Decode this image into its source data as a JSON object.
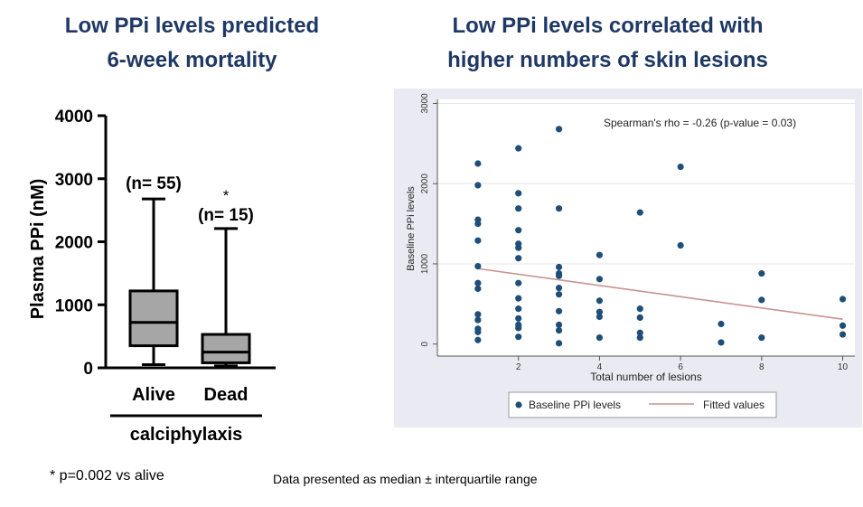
{
  "colors": {
    "title": "#1f3864",
    "box_fill": "#a6a6a6",
    "dot": "#1f4e79",
    "fit_line": "#c9928f",
    "panel_bg": "#eaeaf2"
  },
  "chart_data": [
    {
      "type": "box",
      "title": [
        "Low PPi levels predicted",
        "6-week mortality"
      ],
      "ylabel": "Plasma PPi (nM)",
      "ylim": [
        0,
        4000
      ],
      "yticks": [
        "0",
        "1000",
        "2000",
        "3000",
        "4000"
      ],
      "ytick_values": [
        0,
        1000,
        2000,
        3000,
        4000
      ],
      "categories": [
        "Alive",
        "Dead"
      ],
      "group_label": "calciphylaxis",
      "boxes": [
        {
          "name": "Alive",
          "min": 50,
          "q1": 350,
          "median": 720,
          "q3": 1220,
          "max": 2680,
          "n_label": "(n= 55)"
        },
        {
          "name": "Dead",
          "min": 30,
          "q1": 80,
          "median": 250,
          "q3": 530,
          "max": 2210,
          "n_label": "(n= 15)",
          "marker": "*"
        }
      ]
    },
    {
      "type": "scatter",
      "title": [
        "Low PPi levels correlated with",
        "higher numbers of skin lesions"
      ],
      "xlabel": "Total number of lesions",
      "ylabel": "Baseline PPi levels",
      "xlim": [
        0,
        10.3
      ],
      "ylim": [
        -150,
        3050
      ],
      "xticks": [
        "2",
        "4",
        "6",
        "8",
        "10"
      ],
      "xtick_values": [
        2,
        4,
        6,
        8,
        10
      ],
      "yticks": [
        "0",
        "1000",
        "2000",
        "3000"
      ],
      "ytick_values": [
        0,
        1000,
        2000,
        3000
      ],
      "annotation": "Spearman's rho = -0.26 (p-value = 0.03)",
      "legend": [
        "Baseline PPi levels",
        "Fitted values"
      ],
      "points": [
        [
          1,
          2250
        ],
        [
          1,
          1980
        ],
        [
          1,
          1550
        ],
        [
          1,
          1500
        ],
        [
          1,
          1290
        ],
        [
          1,
          970
        ],
        [
          1,
          760
        ],
        [
          1,
          690
        ],
        [
          1,
          370
        ],
        [
          1,
          300
        ],
        [
          1,
          190
        ],
        [
          1,
          150
        ],
        [
          1,
          50
        ],
        [
          2,
          2440
        ],
        [
          2,
          1880
        ],
        [
          2,
          1690
        ],
        [
          2,
          1420
        ],
        [
          2,
          1250
        ],
        [
          2,
          1200
        ],
        [
          2,
          1070
        ],
        [
          2,
          760
        ],
        [
          2,
          570
        ],
        [
          2,
          440
        ],
        [
          2,
          320
        ],
        [
          2,
          240
        ],
        [
          2,
          200
        ],
        [
          2,
          90
        ],
        [
          3,
          2680
        ],
        [
          3,
          1690
        ],
        [
          3,
          960
        ],
        [
          3,
          880
        ],
        [
          3,
          850
        ],
        [
          3,
          700
        ],
        [
          3,
          620
        ],
        [
          3,
          410
        ],
        [
          3,
          240
        ],
        [
          3,
          170
        ],
        [
          3,
          10
        ],
        [
          4,
          1110
        ],
        [
          4,
          810
        ],
        [
          4,
          540
        ],
        [
          4,
          400
        ],
        [
          4,
          340
        ],
        [
          4,
          80
        ],
        [
          5,
          1640
        ],
        [
          5,
          440
        ],
        [
          5,
          330
        ],
        [
          5,
          140
        ],
        [
          5,
          80
        ],
        [
          6,
          2210
        ],
        [
          6,
          1230
        ],
        [
          7,
          250
        ],
        [
          7,
          20
        ],
        [
          8,
          880
        ],
        [
          8,
          550
        ],
        [
          8,
          80
        ],
        [
          10,
          560
        ],
        [
          10,
          230
        ],
        [
          10,
          120
        ]
      ],
      "fit": {
        "x": [
          1,
          10
        ],
        "y": [
          940,
          310
        ]
      }
    }
  ],
  "footnote": "* p=0.002 vs alive",
  "data_note": "Data presented as median ± interquartile range"
}
